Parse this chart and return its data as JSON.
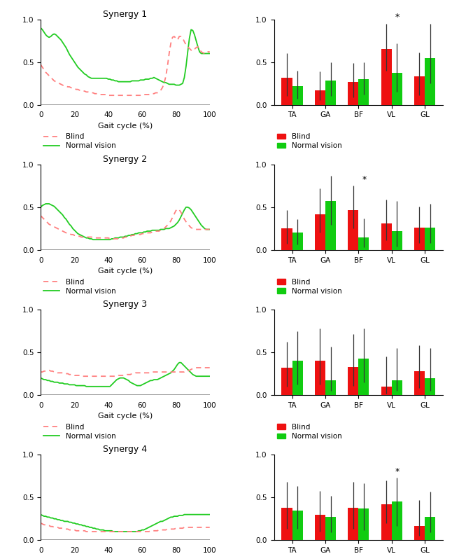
{
  "synergies": [
    "Synergy 1",
    "Synergy 2",
    "Synergy 3",
    "Synergy 4"
  ],
  "muscles": [
    "TA",
    "GA",
    "BF",
    "VL",
    "GL"
  ],
  "line_x": [
    0,
    1,
    2,
    3,
    4,
    5,
    6,
    7,
    8,
    9,
    10,
    11,
    12,
    13,
    14,
    15,
    16,
    17,
    18,
    19,
    20,
    21,
    22,
    23,
    24,
    25,
    26,
    27,
    28,
    29,
    30,
    31,
    32,
    33,
    34,
    35,
    36,
    37,
    38,
    39,
    40,
    41,
    42,
    43,
    44,
    45,
    46,
    47,
    48,
    49,
    50,
    51,
    52,
    53,
    54,
    55,
    56,
    57,
    58,
    59,
    60,
    61,
    62,
    63,
    64,
    65,
    66,
    67,
    68,
    69,
    70,
    71,
    72,
    73,
    74,
    75,
    76,
    77,
    78,
    79,
    80,
    81,
    82,
    83,
    84,
    85,
    86,
    87,
    88,
    89,
    90,
    91,
    92,
    93,
    94,
    95,
    96,
    97,
    98,
    99,
    100
  ],
  "blind_lines": [
    [
      0.47,
      0.44,
      0.41,
      0.38,
      0.36,
      0.34,
      0.32,
      0.3,
      0.28,
      0.27,
      0.26,
      0.25,
      0.24,
      0.23,
      0.22,
      0.22,
      0.21,
      0.21,
      0.2,
      0.19,
      0.19,
      0.18,
      0.18,
      0.17,
      0.17,
      0.16,
      0.16,
      0.15,
      0.15,
      0.14,
      0.14,
      0.14,
      0.13,
      0.13,
      0.13,
      0.12,
      0.12,
      0.12,
      0.12,
      0.12,
      0.11,
      0.11,
      0.11,
      0.11,
      0.11,
      0.11,
      0.11,
      0.11,
      0.11,
      0.11,
      0.11,
      0.11,
      0.11,
      0.11,
      0.11,
      0.11,
      0.11,
      0.11,
      0.11,
      0.11,
      0.11,
      0.12,
      0.12,
      0.12,
      0.12,
      0.13,
      0.13,
      0.13,
      0.14,
      0.14,
      0.15,
      0.17,
      0.2,
      0.25,
      0.33,
      0.45,
      0.6,
      0.72,
      0.79,
      0.8,
      0.78,
      0.76,
      0.8,
      0.8,
      0.78,
      0.74,
      0.7,
      0.68,
      0.66,
      0.64,
      0.63,
      0.65,
      0.67,
      0.68,
      0.65,
      0.62,
      0.61,
      0.6,
      0.6,
      0.62,
      0.62
    ],
    [
      0.4,
      0.38,
      0.36,
      0.34,
      0.32,
      0.3,
      0.29,
      0.28,
      0.27,
      0.26,
      0.25,
      0.24,
      0.23,
      0.22,
      0.21,
      0.2,
      0.2,
      0.19,
      0.18,
      0.18,
      0.17,
      0.17,
      0.16,
      0.16,
      0.15,
      0.15,
      0.15,
      0.15,
      0.15,
      0.15,
      0.15,
      0.15,
      0.14,
      0.14,
      0.14,
      0.14,
      0.14,
      0.14,
      0.14,
      0.14,
      0.14,
      0.13,
      0.13,
      0.13,
      0.13,
      0.13,
      0.13,
      0.14,
      0.14,
      0.14,
      0.15,
      0.15,
      0.16,
      0.16,
      0.17,
      0.17,
      0.18,
      0.18,
      0.18,
      0.18,
      0.19,
      0.19,
      0.2,
      0.2,
      0.2,
      0.2,
      0.21,
      0.21,
      0.22,
      0.22,
      0.22,
      0.23,
      0.24,
      0.25,
      0.27,
      0.29,
      0.31,
      0.34,
      0.38,
      0.42,
      0.46,
      0.48,
      0.47,
      0.44,
      0.4,
      0.36,
      0.33,
      0.31,
      0.28,
      0.26,
      0.25,
      0.24,
      0.24,
      0.24,
      0.24,
      0.24,
      0.24,
      0.24,
      0.24,
      0.24,
      0.24
    ],
    [
      0.27,
      0.27,
      0.28,
      0.28,
      0.29,
      0.29,
      0.28,
      0.28,
      0.27,
      0.27,
      0.26,
      0.26,
      0.26,
      0.26,
      0.25,
      0.25,
      0.25,
      0.24,
      0.24,
      0.24,
      0.23,
      0.23,
      0.23,
      0.23,
      0.23,
      0.22,
      0.22,
      0.22,
      0.22,
      0.22,
      0.22,
      0.22,
      0.22,
      0.22,
      0.22,
      0.22,
      0.22,
      0.22,
      0.22,
      0.22,
      0.22,
      0.22,
      0.22,
      0.22,
      0.22,
      0.22,
      0.23,
      0.23,
      0.23,
      0.23,
      0.23,
      0.24,
      0.24,
      0.24,
      0.25,
      0.25,
      0.26,
      0.26,
      0.26,
      0.26,
      0.26,
      0.26,
      0.26,
      0.26,
      0.26,
      0.26,
      0.27,
      0.27,
      0.27,
      0.27,
      0.27,
      0.27,
      0.27,
      0.27,
      0.27,
      0.27,
      0.27,
      0.27,
      0.27,
      0.27,
      0.27,
      0.27,
      0.27,
      0.27,
      0.27,
      0.27,
      0.28,
      0.28,
      0.29,
      0.3,
      0.31,
      0.32,
      0.32,
      0.32,
      0.32,
      0.32,
      0.32,
      0.32,
      0.32,
      0.32,
      0.32
    ],
    [
      0.2,
      0.19,
      0.18,
      0.18,
      0.17,
      0.17,
      0.16,
      0.16,
      0.15,
      0.15,
      0.15,
      0.14,
      0.14,
      0.14,
      0.13,
      0.13,
      0.13,
      0.12,
      0.12,
      0.12,
      0.12,
      0.11,
      0.11,
      0.11,
      0.11,
      0.11,
      0.11,
      0.1,
      0.1,
      0.1,
      0.1,
      0.1,
      0.1,
      0.1,
      0.1,
      0.1,
      0.1,
      0.1,
      0.1,
      0.1,
      0.1,
      0.1,
      0.1,
      0.1,
      0.1,
      0.1,
      0.1,
      0.1,
      0.1,
      0.1,
      0.1,
      0.1,
      0.1,
      0.1,
      0.1,
      0.1,
      0.1,
      0.1,
      0.1,
      0.1,
      0.1,
      0.1,
      0.1,
      0.1,
      0.1,
      0.11,
      0.11,
      0.11,
      0.11,
      0.11,
      0.12,
      0.12,
      0.12,
      0.12,
      0.12,
      0.13,
      0.13,
      0.13,
      0.13,
      0.13,
      0.14,
      0.14,
      0.14,
      0.14,
      0.14,
      0.15,
      0.15,
      0.15,
      0.15,
      0.15,
      0.15,
      0.15,
      0.15,
      0.15,
      0.15,
      0.15,
      0.15,
      0.15,
      0.15,
      0.15,
      0.15
    ]
  ],
  "normal_lines": [
    [
      0.9,
      0.88,
      0.85,
      0.82,
      0.8,
      0.79,
      0.8,
      0.82,
      0.83,
      0.82,
      0.8,
      0.78,
      0.76,
      0.73,
      0.7,
      0.67,
      0.63,
      0.59,
      0.56,
      0.53,
      0.5,
      0.47,
      0.44,
      0.42,
      0.4,
      0.38,
      0.36,
      0.35,
      0.33,
      0.32,
      0.31,
      0.31,
      0.31,
      0.31,
      0.31,
      0.31,
      0.31,
      0.31,
      0.31,
      0.31,
      0.3,
      0.3,
      0.29,
      0.29,
      0.28,
      0.28,
      0.27,
      0.27,
      0.27,
      0.27,
      0.27,
      0.27,
      0.27,
      0.27,
      0.28,
      0.28,
      0.28,
      0.28,
      0.28,
      0.29,
      0.29,
      0.29,
      0.3,
      0.3,
      0.3,
      0.31,
      0.31,
      0.32,
      0.31,
      0.3,
      0.29,
      0.28,
      0.27,
      0.26,
      0.26,
      0.25,
      0.24,
      0.24,
      0.24,
      0.24,
      0.23,
      0.23,
      0.23,
      0.24,
      0.25,
      0.32,
      0.45,
      0.62,
      0.78,
      0.88,
      0.87,
      0.82,
      0.75,
      0.68,
      0.62,
      0.6,
      0.6,
      0.6,
      0.6,
      0.6,
      0.6
    ],
    [
      0.5,
      0.52,
      0.53,
      0.54,
      0.54,
      0.54,
      0.53,
      0.52,
      0.51,
      0.49,
      0.47,
      0.45,
      0.43,
      0.41,
      0.38,
      0.36,
      0.33,
      0.3,
      0.28,
      0.25,
      0.23,
      0.21,
      0.19,
      0.18,
      0.17,
      0.16,
      0.15,
      0.14,
      0.14,
      0.13,
      0.13,
      0.12,
      0.12,
      0.12,
      0.12,
      0.12,
      0.12,
      0.12,
      0.12,
      0.12,
      0.12,
      0.12,
      0.13,
      0.13,
      0.14,
      0.14,
      0.14,
      0.15,
      0.15,
      0.15,
      0.16,
      0.16,
      0.17,
      0.17,
      0.18,
      0.18,
      0.19,
      0.19,
      0.2,
      0.2,
      0.2,
      0.21,
      0.21,
      0.22,
      0.22,
      0.22,
      0.23,
      0.23,
      0.23,
      0.23,
      0.23,
      0.24,
      0.24,
      0.24,
      0.25,
      0.25,
      0.25,
      0.26,
      0.27,
      0.28,
      0.3,
      0.32,
      0.35,
      0.39,
      0.43,
      0.47,
      0.5,
      0.5,
      0.49,
      0.47,
      0.44,
      0.41,
      0.38,
      0.35,
      0.32,
      0.29,
      0.27,
      0.25,
      0.24,
      0.24,
      0.24
    ],
    [
      0.2,
      0.19,
      0.18,
      0.18,
      0.17,
      0.17,
      0.16,
      0.16,
      0.15,
      0.15,
      0.15,
      0.14,
      0.14,
      0.14,
      0.13,
      0.13,
      0.13,
      0.12,
      0.12,
      0.12,
      0.12,
      0.11,
      0.11,
      0.11,
      0.11,
      0.11,
      0.11,
      0.1,
      0.1,
      0.1,
      0.1,
      0.1,
      0.1,
      0.1,
      0.1,
      0.1,
      0.1,
      0.1,
      0.1,
      0.1,
      0.1,
      0.1,
      0.12,
      0.14,
      0.16,
      0.18,
      0.19,
      0.2,
      0.2,
      0.2,
      0.19,
      0.18,
      0.17,
      0.15,
      0.14,
      0.13,
      0.12,
      0.11,
      0.11,
      0.11,
      0.12,
      0.13,
      0.14,
      0.15,
      0.16,
      0.17,
      0.17,
      0.18,
      0.18,
      0.18,
      0.19,
      0.2,
      0.21,
      0.22,
      0.23,
      0.24,
      0.25,
      0.26,
      0.28,
      0.3,
      0.33,
      0.36,
      0.38,
      0.38,
      0.36,
      0.34,
      0.32,
      0.3,
      0.28,
      0.26,
      0.24,
      0.23,
      0.22,
      0.22,
      0.22,
      0.22,
      0.22,
      0.22,
      0.22,
      0.22,
      0.22
    ],
    [
      0.3,
      0.29,
      0.28,
      0.28,
      0.27,
      0.27,
      0.26,
      0.26,
      0.25,
      0.25,
      0.24,
      0.24,
      0.23,
      0.23,
      0.22,
      0.22,
      0.22,
      0.21,
      0.21,
      0.2,
      0.2,
      0.19,
      0.19,
      0.18,
      0.18,
      0.17,
      0.17,
      0.16,
      0.16,
      0.15,
      0.15,
      0.14,
      0.14,
      0.13,
      0.13,
      0.12,
      0.12,
      0.12,
      0.11,
      0.11,
      0.11,
      0.11,
      0.11,
      0.1,
      0.1,
      0.1,
      0.1,
      0.1,
      0.1,
      0.1,
      0.1,
      0.1,
      0.1,
      0.1,
      0.1,
      0.1,
      0.1,
      0.1,
      0.11,
      0.11,
      0.12,
      0.12,
      0.13,
      0.14,
      0.15,
      0.16,
      0.17,
      0.18,
      0.19,
      0.2,
      0.21,
      0.22,
      0.22,
      0.23,
      0.24,
      0.25,
      0.26,
      0.27,
      0.27,
      0.28,
      0.28,
      0.28,
      0.29,
      0.29,
      0.29,
      0.3,
      0.3,
      0.3,
      0.3,
      0.3,
      0.3,
      0.3,
      0.3,
      0.3,
      0.3,
      0.3,
      0.3,
      0.3,
      0.3,
      0.3,
      0.3
    ]
  ],
  "bar_blind": [
    [
      0.32,
      0.17,
      0.27,
      0.65,
      0.33
    ],
    [
      0.25,
      0.42,
      0.47,
      0.31,
      0.26
    ],
    [
      0.32,
      0.4,
      0.33,
      0.1,
      0.28
    ],
    [
      0.38,
      0.3,
      0.38,
      0.42,
      0.17
    ]
  ],
  "bar_normal": [
    [
      0.22,
      0.28,
      0.3,
      0.37,
      0.55
    ],
    [
      0.2,
      0.57,
      0.15,
      0.22,
      0.26
    ],
    [
      0.4,
      0.17,
      0.43,
      0.17,
      0.2
    ],
    [
      0.35,
      0.27,
      0.37,
      0.45,
      0.27
    ]
  ],
  "err_blind_low": [
    [
      0.22,
      0.12,
      0.18,
      0.25,
      0.22
    ],
    [
      0.18,
      0.22,
      0.22,
      0.2,
      0.18
    ],
    [
      0.22,
      0.28,
      0.22,
      0.08,
      0.2
    ],
    [
      0.25,
      0.2,
      0.25,
      0.22,
      0.12
    ]
  ],
  "err_blind_high": [
    [
      0.28,
      0.22,
      0.22,
      0.3,
      0.28
    ],
    [
      0.22,
      0.3,
      0.28,
      0.28,
      0.25
    ],
    [
      0.3,
      0.38,
      0.38,
      0.35,
      0.3
    ],
    [
      0.3,
      0.28,
      0.3,
      0.28,
      0.3
    ]
  ],
  "err_normal_low": [
    [
      0.15,
      0.18,
      0.18,
      0.22,
      0.3
    ],
    [
      0.14,
      0.28,
      0.12,
      0.18,
      0.18
    ],
    [
      0.28,
      0.12,
      0.28,
      0.12,
      0.15
    ],
    [
      0.22,
      0.18,
      0.25,
      0.28,
      0.18
    ]
  ],
  "err_normal_high": [
    [
      0.18,
      0.22,
      0.2,
      0.35,
      0.4
    ],
    [
      0.16,
      0.3,
      0.22,
      0.35,
      0.28
    ],
    [
      0.35,
      0.4,
      0.35,
      0.38,
      0.35
    ],
    [
      0.28,
      0.25,
      0.3,
      0.28,
      0.3
    ]
  ],
  "sig_markers": [
    [
      false,
      false,
      false,
      true,
      false
    ],
    [
      false,
      false,
      true,
      false,
      false
    ],
    [
      false,
      false,
      false,
      false,
      false
    ],
    [
      false,
      false,
      false,
      true,
      false
    ]
  ],
  "blind_color": "#EE1111",
  "normal_color": "#11CC11",
  "line_blind_color": "#FF8080",
  "line_normal_color": "#22CC22",
  "bar_width": 0.32,
  "ylim_line": [
    0,
    1
  ],
  "ylim_bar": [
    0,
    1
  ],
  "xlabel": "Gait cycle (%)",
  "xticks_line": [
    0,
    20,
    40,
    60,
    80,
    100
  ],
  "yticks_line": [
    0,
    0.5,
    1
  ],
  "yticks_bar": [
    0,
    0.5,
    1
  ]
}
